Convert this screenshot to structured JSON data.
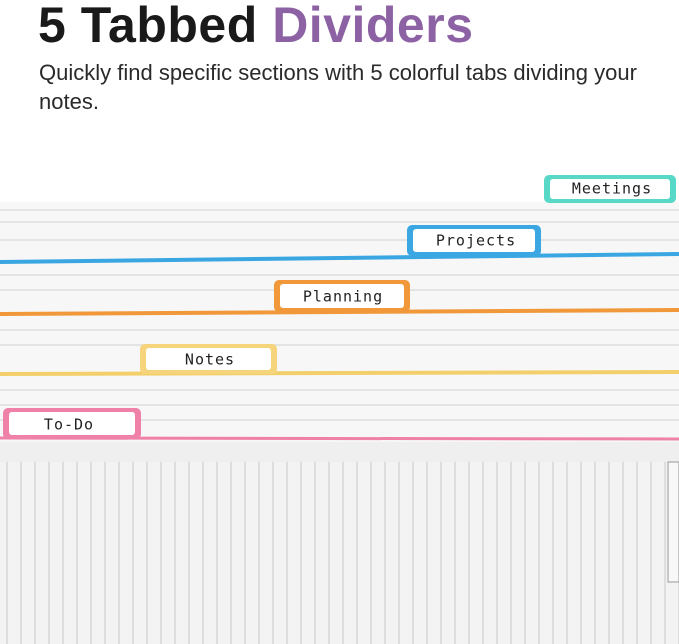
{
  "header": {
    "title_main": "5 Tabbed",
    "title_accent": "Dividers",
    "subtitle": "Quickly find specific sections with 5  colorful tabs dividing your notes."
  },
  "tabs": [
    "Meetings",
    "Projects",
    "Planning",
    "Notes",
    "To-Do"
  ]
}
